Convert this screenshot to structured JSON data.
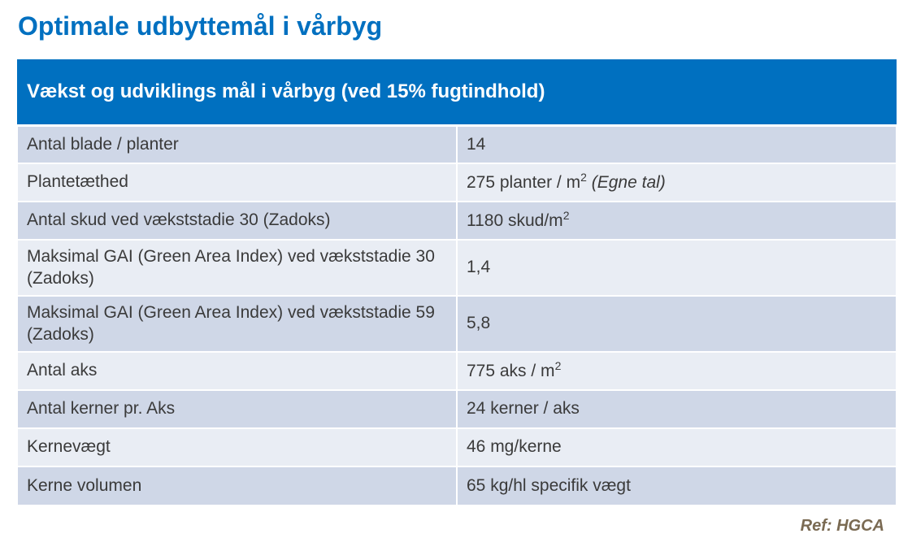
{
  "title": "Optimale udbyttemål i vårbyg",
  "table": {
    "header": "Vækst og udviklings mål i vårbyg  (ved 15% fugtindhold)",
    "rows": [
      {
        "label": "Antal blade / planter",
        "value": "14"
      },
      {
        "label": "Plantetæthed",
        "value": "275 planter / m",
        "sup": "2",
        "note": "(Egne tal)"
      },
      {
        "label": "Antal skud ved vækststadie 30 (Zadoks)",
        "value": "1180 skud/m",
        "sup": "2"
      },
      {
        "label": "Maksimal GAI  (Green Area Index) ved vækststadie 30 (Zadoks)",
        "value": "1,4"
      },
      {
        "label": "Maksimal GAI (Green Area Index) ved vækststadie 59 (Zadoks)",
        "value": "5,8"
      },
      {
        "label": "Antal aks",
        "value": "775 aks / m",
        "sup": "2"
      },
      {
        "label": "Antal kerner pr. Aks",
        "value": "24 kerner / aks"
      },
      {
        "label": "Kernevægt",
        "value": "46 mg/kerne"
      },
      {
        "label": "Kerne volumen",
        "value": "65 kg/hl specifik vægt"
      }
    ]
  },
  "reference": "Ref: HGCA"
}
